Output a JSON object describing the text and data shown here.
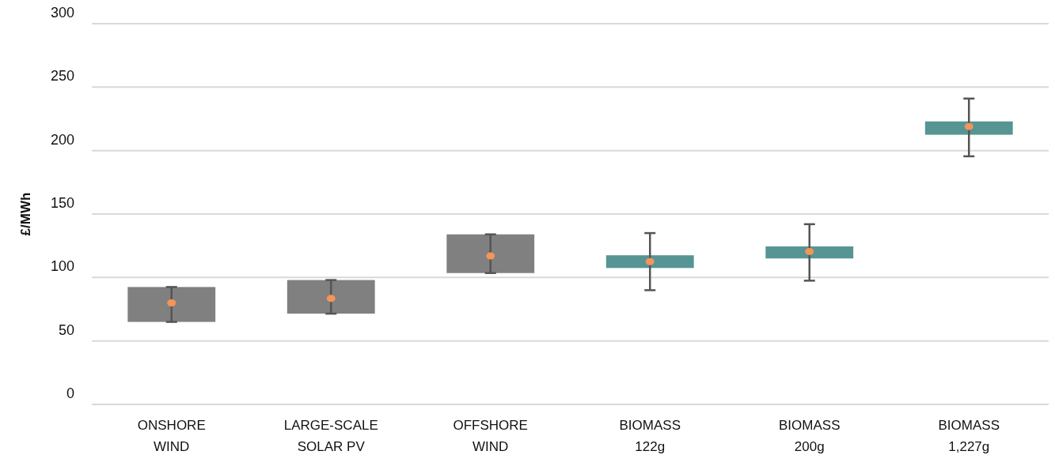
{
  "chart_data": {
    "type": "bar",
    "ylabel": "£/MWh",
    "categories": [
      "ONSHORE WIND",
      "LARGE-SCALE SOLAR PV",
      "OFFSHORE WIND",
      "BIOMASS 122g",
      "BIOMASS 200g",
      "BIOMASS 1,227g"
    ],
    "series": [
      {
        "base": [
          65,
          71.5,
          103.5,
          107.5,
          115,
          212.5
        ],
        "values": [
          27.5,
          26.5,
          30.5,
          10,
          9.5,
          10.5
        ],
        "colors": [
          "#808080",
          "#808080",
          "#808080",
          "#579494",
          "#579494",
          "#579494"
        ]
      },
      {
        "type": "scatter",
        "color": "#f4955a",
        "marker": "circle",
        "values": [
          80,
          83.5,
          117,
          112.5,
          120.5,
          219
        ],
        "errors": [
          [
            65,
            92.5
          ],
          [
            71.5,
            98
          ],
          [
            103.5,
            134
          ],
          [
            90,
            135
          ],
          [
            97.5,
            142
          ],
          [
            195.5,
            241
          ]
        ]
      }
    ],
    "ylim": [
      0,
      300
    ],
    "yticks": [
      0,
      50,
      100,
      150,
      200,
      250,
      300
    ],
    "grid": "y"
  }
}
